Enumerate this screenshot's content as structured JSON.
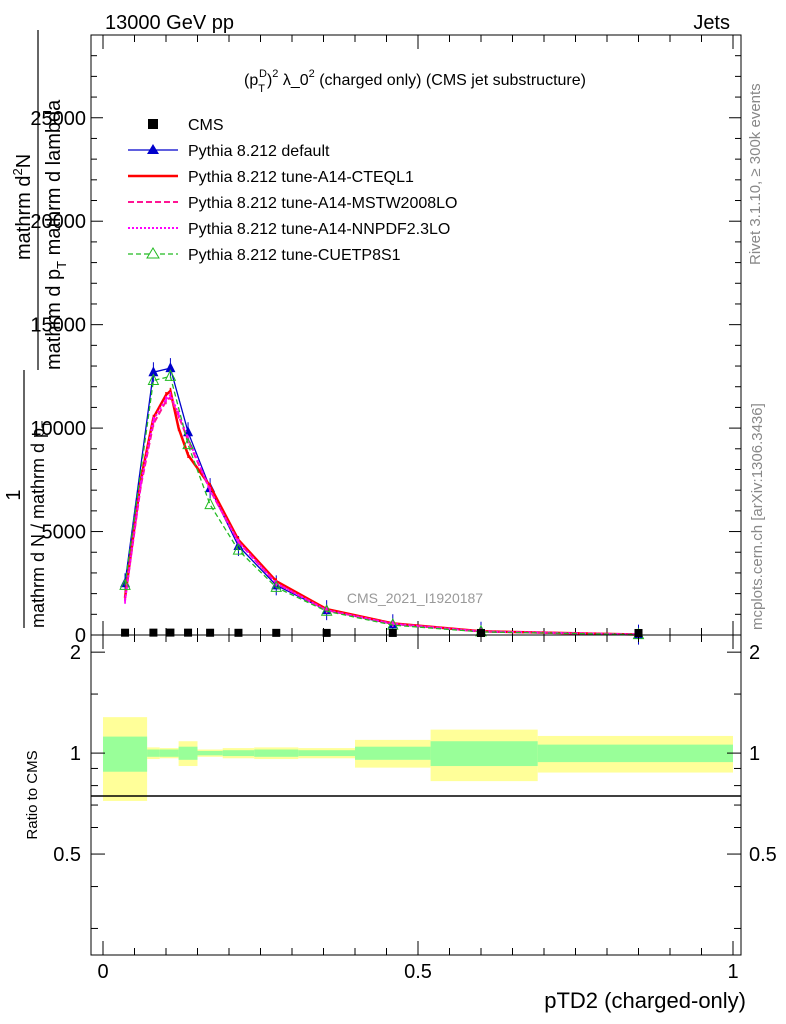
{
  "header": {
    "energy_label": "13000 GeV pp",
    "category_label": "Jets"
  },
  "side_labels": {
    "rivet": "Rivet 3.1.10, ≥ 300k events",
    "mcplots": "mcplots.cern.ch [arXiv:1306.3436]"
  },
  "chart_data": [
    {
      "type": "line",
      "title": "(p_T^D)^2 λ_0^2 (charged only) (CMS jet substructure)",
      "title_parts": {
        "base": "(p",
        "sub": "T",
        "sup_d": "D",
        "mid": ")",
        "sup2": "2",
        "rest": " λ_0",
        "sup3": "2",
        "tail": " (charged only) (CMS jet substructure)"
      },
      "watermark": "CMS_2021_I1920187",
      "ylabel": {
        "num_top": "mathrm d",
        "num_top_sup": "2",
        "num_top_end": "N",
        "num_bottom": "mathrm d p",
        "num_bottom_sub": "T",
        "num_bottom_end": " mathrm d lambda",
        "prefix_num": "1",
        "prefix_den": "mathrm d N / mathrm d p",
        "prefix_den_sub": "T"
      },
      "xlim": [
        0,
        1
      ],
      "ylim": [
        0,
        29000
      ],
      "y_ticks": [
        0,
        5000,
        10000,
        15000,
        20000,
        25000
      ],
      "y_tick_labels": [
        "0",
        "5000",
        "10000",
        "15000",
        "20000",
        "25000"
      ],
      "legend": [
        {
          "name": "CMS",
          "color": "#000000",
          "style": "square"
        },
        {
          "name": "Pythia 8.212 default",
          "color": "#0000cc",
          "style": "solid-triangle"
        },
        {
          "name": "Pythia 8.212 tune-A14-CTEQL1",
          "color": "#ff0000",
          "style": "solid-thick"
        },
        {
          "name": "Pythia 8.212 tune-A14-MSTW2008LO",
          "color": "#ff1493",
          "style": "dashed"
        },
        {
          "name": "Pythia 8.212 tune-A14-NNPDF2.3LO",
          "color": "#ff00ff",
          "style": "dotted"
        },
        {
          "name": "Pythia 8.212 tune-CUETP8S1",
          "color": "#22bb22",
          "style": "dashed-open-triangle"
        }
      ],
      "cms": {
        "x": [
          0.035,
          0.08,
          0.107,
          0.135,
          0.17,
          0.215,
          0.275,
          0.355,
          0.46,
          0.6,
          0.85
        ],
        "y": [
          15,
          18,
          20,
          17,
          13,
          10,
          7,
          5,
          3,
          1,
          0.5
        ]
      },
      "series": [
        {
          "name": "Pythia 8.212 default",
          "color": "#0000cc",
          "x": [
            0.035,
            0.08,
            0.107,
            0.135,
            0.17,
            0.215,
            0.275,
            0.355,
            0.46,
            0.6,
            0.85
          ],
          "y": [
            2500,
            12700,
            12900,
            9800,
            7100,
            4300,
            2400,
            1200,
            520,
            160,
            20
          ]
        },
        {
          "name": "Pythia 8.212 tune-A14-CTEQL1",
          "color": "#ff0000",
          "x": [
            0.035,
            0.06,
            0.08,
            0.1,
            0.107,
            0.12,
            0.135,
            0.17,
            0.215,
            0.275,
            0.355,
            0.46,
            0.6,
            0.85
          ],
          "y": [
            1800,
            7500,
            10500,
            11600,
            11800,
            10000,
            8700,
            7200,
            4600,
            2600,
            1250,
            560,
            180,
            25
          ]
        },
        {
          "name": "Pythia 8.212 tune-A14-MSTW2008LO",
          "color": "#ff1493",
          "x": [
            0.035,
            0.06,
            0.08,
            0.1,
            0.107,
            0.12,
            0.135,
            0.17,
            0.215,
            0.275,
            0.355,
            0.46,
            0.6,
            0.85
          ],
          "y": [
            1700,
            7200,
            10200,
            11300,
            11500,
            10600,
            9400,
            7000,
            4500,
            2500,
            1200,
            540,
            170,
            22
          ]
        },
        {
          "name": "Pythia 8.212 tune-A14-NNPDF2.3LO",
          "color": "#ff00ff",
          "x": [
            0.035,
            0.06,
            0.08,
            0.1,
            0.107,
            0.12,
            0.135,
            0.17,
            0.215,
            0.275,
            0.355,
            0.46,
            0.6,
            0.85
          ],
          "y": [
            1650,
            7300,
            10400,
            11400,
            11600,
            10700,
            9500,
            7000,
            4500,
            2500,
            1200,
            540,
            170,
            22
          ]
        },
        {
          "name": "Pythia 8.212 tune-CUETP8S1",
          "color": "#22bb22",
          "x": [
            0.035,
            0.08,
            0.107,
            0.135,
            0.17,
            0.215,
            0.275,
            0.355,
            0.46,
            0.6,
            0.85
          ],
          "y": [
            2400,
            12300,
            12500,
            9200,
            6300,
            4100,
            2300,
            1150,
            480,
            150,
            18
          ]
        }
      ]
    },
    {
      "type": "area",
      "ylabel": "Ratio to CMS",
      "xlabel": "pTD2 (charged-only)",
      "xlim": [
        0,
        1
      ],
      "ylim": [
        0.25,
        2.25
      ],
      "x_ticks": [
        0,
        0.5,
        1
      ],
      "x_tick_labels": [
        "0",
        "0.5",
        "1"
      ],
      "y_ticks": [
        0.5,
        1,
        2
      ],
      "y_tick_labels": [
        "0.5",
        "1",
        "2"
      ],
      "bins": [
        {
          "x0": 0.0,
          "x1": 0.07,
          "inner": [
            0.88,
            1.12
          ],
          "outer": [
            0.72,
            1.28
          ]
        },
        {
          "x0": 0.07,
          "x1": 0.09,
          "inner": [
            0.975,
            1.025
          ],
          "outer": [
            0.96,
            1.04
          ]
        },
        {
          "x0": 0.09,
          "x1": 0.12,
          "inner": [
            0.975,
            1.025
          ],
          "outer": [
            0.965,
            1.035
          ]
        },
        {
          "x0": 0.12,
          "x1": 0.15,
          "inner": [
            0.955,
            1.045
          ],
          "outer": [
            0.915,
            1.085
          ]
        },
        {
          "x0": 0.15,
          "x1": 0.19,
          "inner": [
            0.985,
            1.015
          ],
          "outer": [
            0.975,
            1.025
          ]
        },
        {
          "x0": 0.19,
          "x1": 0.24,
          "inner": [
            0.98,
            1.02
          ],
          "outer": [
            0.965,
            1.035
          ]
        },
        {
          "x0": 0.24,
          "x1": 0.31,
          "inner": [
            0.975,
            1.025
          ],
          "outer": [
            0.96,
            1.04
          ]
        },
        {
          "x0": 0.31,
          "x1": 0.4,
          "inner": [
            0.98,
            1.02
          ],
          "outer": [
            0.965,
            1.035
          ]
        },
        {
          "x0": 0.4,
          "x1": 0.52,
          "inner": [
            0.955,
            1.045
          ],
          "outer": [
            0.905,
            1.095
          ]
        },
        {
          "x0": 0.52,
          "x1": 0.69,
          "inner": [
            0.915,
            1.085
          ],
          "outer": [
            0.825,
            1.175
          ]
        },
        {
          "x0": 0.69,
          "x1": 1.0,
          "inner": [
            0.94,
            1.06
          ],
          "outer": [
            0.875,
            1.125
          ]
        }
      ]
    }
  ]
}
